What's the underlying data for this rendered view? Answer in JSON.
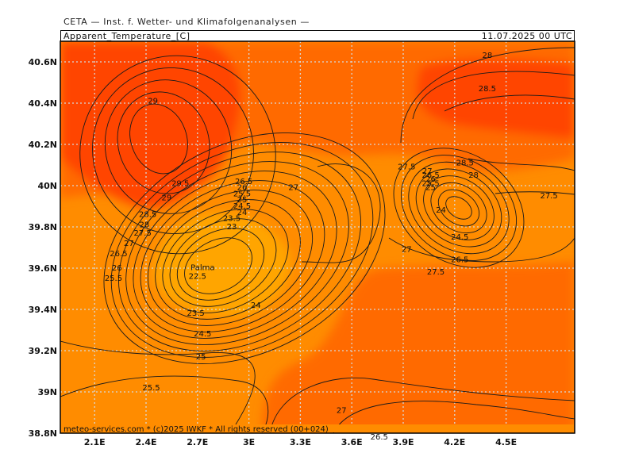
{
  "header": {
    "source": "CETA — Inst. f. Wetter- und Klimafolgenanalysen —",
    "variable": "Apparent_Temperature_[C]",
    "valid_time": "11.07.2025 00 UTC"
  },
  "footer": "meteo-services.com * (c)2025 IWKF * All rights reserved (00+024)",
  "place_label": "Palma",
  "axes": {
    "lat_ticks": [
      "40.6N",
      "40.4N",
      "40.2N",
      "40N",
      "39.8N",
      "39.6N",
      "39.4N",
      "39.2N",
      "39N",
      "38.8N"
    ],
    "lon_ticks": [
      "2.1E",
      "2.4E",
      "2.7E",
      "3E",
      "3.3E",
      "3.6E",
      "3.9E",
      "4.2E",
      "4.5E"
    ]
  },
  "colors": {
    "background": "#ff8c00",
    "warm": "#ff6a00",
    "hot": "#ff4500",
    "cool": "#ffa500"
  },
  "contour_labels": [
    {
      "text": "28",
      "lon": 4.39,
      "lat": 40.63
    },
    {
      "text": "28.5",
      "lon": 4.39,
      "lat": 40.47
    },
    {
      "text": "29",
      "lon": 2.44,
      "lat": 40.41
    },
    {
      "text": "29.5",
      "lon": 2.6,
      "lat": 40.01
    },
    {
      "text": "29",
      "lon": 2.52,
      "lat": 39.94
    },
    {
      "text": "28.5",
      "lon": 2.41,
      "lat": 39.86
    },
    {
      "text": "28",
      "lon": 2.39,
      "lat": 39.81
    },
    {
      "text": "27.5",
      "lon": 2.38,
      "lat": 39.77
    },
    {
      "text": "27",
      "lon": 2.3,
      "lat": 39.72
    },
    {
      "text": "26.5",
      "lon": 2.24,
      "lat": 39.67
    },
    {
      "text": "26",
      "lon": 2.23,
      "lat": 39.6
    },
    {
      "text": "25.5",
      "lon": 2.21,
      "lat": 39.55
    },
    {
      "text": "26.5",
      "lon": 2.97,
      "lat": 40.02
    },
    {
      "text": "26",
      "lon": 2.96,
      "lat": 39.99
    },
    {
      "text": "25.5",
      "lon": 2.96,
      "lat": 39.96
    },
    {
      "text": "25",
      "lon": 2.96,
      "lat": 39.93
    },
    {
      "text": "24.5",
      "lon": 2.96,
      "lat": 39.9
    },
    {
      "text": "24",
      "lon": 2.96,
      "lat": 39.87
    },
    {
      "text": "23.5",
      "lon": 2.9,
      "lat": 39.84
    },
    {
      "text": "23",
      "lon": 2.9,
      "lat": 39.8
    },
    {
      "text": "27",
      "lon": 3.26,
      "lat": 39.99
    },
    {
      "text": "22.5",
      "lon": 2.7,
      "lat": 39.56
    },
    {
      "text": "24",
      "lon": 3.04,
      "lat": 39.42
    },
    {
      "text": "23.5",
      "lon": 2.69,
      "lat": 39.38
    },
    {
      "text": "24.5",
      "lon": 2.73,
      "lat": 39.28
    },
    {
      "text": "25",
      "lon": 2.72,
      "lat": 39.17
    },
    {
      "text": "25.5",
      "lon": 2.43,
      "lat": 39.02
    },
    {
      "text": "27",
      "lon": 3.54,
      "lat": 38.91
    },
    {
      "text": "26.5",
      "lon": 3.76,
      "lat": 38.78
    },
    {
      "text": "27.5",
      "lon": 3.92,
      "lat": 40.09
    },
    {
      "text": "27",
      "lon": 4.04,
      "lat": 40.07
    },
    {
      "text": "26.5",
      "lon": 4.06,
      "lat": 40.05
    },
    {
      "text": "26",
      "lon": 4.06,
      "lat": 40.03
    },
    {
      "text": "25.5",
      "lon": 4.06,
      "lat": 40.01
    },
    {
      "text": "25",
      "lon": 4.06,
      "lat": 39.99
    },
    {
      "text": "28.5",
      "lon": 4.26,
      "lat": 40.11
    },
    {
      "text": "28",
      "lon": 4.31,
      "lat": 40.05
    },
    {
      "text": "27.5",
      "lon": 4.75,
      "lat": 39.95
    },
    {
      "text": "24",
      "lon": 4.12,
      "lat": 39.88
    },
    {
      "text": "24.5",
      "lon": 4.23,
      "lat": 39.75
    },
    {
      "text": "26.5",
      "lon": 4.23,
      "lat": 39.64
    },
    {
      "text": "27",
      "lon": 3.92,
      "lat": 39.69
    },
    {
      "text": "27.5",
      "lon": 4.09,
      "lat": 39.58
    }
  ]
}
